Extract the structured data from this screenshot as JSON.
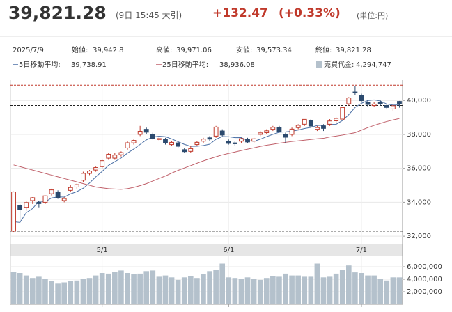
{
  "quote": {
    "price": "39,821.28",
    "time": "(9日 15:45 大引)",
    "change": "+132.47",
    "change_pct": "(+0.33%)",
    "unit": "(単位:円)"
  },
  "info": {
    "date": "2025/7/9",
    "open": {
      "label": "始値:",
      "value": "39,942.8"
    },
    "high": {
      "label": "高値:",
      "value": "39,971.06"
    },
    "low": {
      "label": "安値:",
      "value": "39,573.34"
    },
    "close": {
      "label": "終値:",
      "value": "39,821.28"
    }
  },
  "chart_data": [
    {
      "type": "candlestick",
      "categories": [
        null,
        null,
        null,
        null,
        null,
        null,
        null,
        null,
        null,
        null,
        null,
        null,
        null,
        null,
        "5/1",
        null,
        null,
        null,
        null,
        null,
        null,
        null,
        null,
        null,
        null,
        null,
        null,
        null,
        null,
        null,
        null,
        null,
        null,
        null,
        "6/1",
        null,
        null,
        null,
        null,
        null,
        null,
        null,
        null,
        null,
        null,
        null,
        null,
        null,
        null,
        null,
        null,
        null,
        null,
        null,
        null,
        "7/1",
        null,
        null,
        null,
        null,
        null,
        null
      ],
      "open": [
        32300,
        33800,
        33700,
        34100,
        34000,
        34000,
        34500,
        34600,
        34100,
        34700,
        34900,
        35300,
        35700,
        35900,
        36100,
        36600,
        36600,
        36800,
        37200,
        37500,
        38000,
        38300,
        38000,
        37700,
        37700,
        37400,
        37500,
        37100,
        37000,
        37400,
        37600,
        37800,
        37900,
        38200,
        37600,
        37500,
        37600,
        37700,
        37600,
        38000,
        38100,
        38300,
        38400,
        38000,
        38000,
        38400,
        38600,
        38800,
        38300,
        38500,
        38600,
        38800,
        38900,
        39800,
        40500,
        40300,
        39900,
        39700,
        39900,
        39700,
        39500,
        39942.8
      ],
      "high": [
        34640,
        33900,
        34100,
        34300,
        34100,
        34400,
        34800,
        34700,
        34300,
        35000,
        35100,
        35800,
        35900,
        36100,
        36500,
        36900,
        36900,
        37000,
        37600,
        37700,
        38500,
        38400,
        38100,
        37900,
        37800,
        37600,
        37600,
        37200,
        37300,
        37600,
        37800,
        37900,
        38500,
        38300,
        37700,
        37600,
        37800,
        37800,
        37800,
        38200,
        38300,
        38500,
        38500,
        38100,
        38400,
        38600,
        38900,
        38900,
        38500,
        38600,
        38900,
        39000,
        39600,
        40200,
        40850,
        40400,
        40000,
        39900,
        40000,
        39800,
        39800,
        39971.06
      ],
      "low": [
        32250,
        32900,
        33500,
        33900,
        33700,
        33900,
        34400,
        34200,
        34000,
        34600,
        34800,
        35200,
        35600,
        35800,
        36000,
        36500,
        36500,
        36700,
        37100,
        37400,
        37900,
        38000,
        37700,
        37600,
        37400,
        37300,
        37200,
        36900,
        36900,
        37300,
        37500,
        37600,
        37800,
        37900,
        37400,
        37300,
        37500,
        37500,
        37500,
        37900,
        38000,
        38200,
        38100,
        37500,
        37900,
        38300,
        38500,
        38400,
        38200,
        38200,
        38500,
        38700,
        38900,
        39700,
        40300,
        39900,
        39600,
        39600,
        39700,
        39500,
        39400,
        39573.34
      ],
      "close": [
        34609,
        33585,
        33982,
        34267,
        33920,
        34377,
        34730,
        34279,
        34220,
        34868,
        35039,
        35705,
        35839,
        36045,
        36452,
        36830,
        36779,
        36928,
        37503,
        37644,
        38183,
        38128,
        37755,
        37753,
        37498,
        37529,
        37298,
        36985,
        37160,
        37531,
        37724,
        37722,
        38432,
        37965,
        37470,
        37446,
        37747,
        37554,
        37741,
        38088,
        38211,
        38421,
        38173,
        37834,
        38311,
        38536,
        38885,
        38488,
        38403,
        38354,
        38790,
        38942,
        39584,
        40150,
        40487,
        39986,
        39762,
        39785,
        39811,
        39587,
        39688,
        39821.28
      ],
      "up_color": "#c0392b",
      "down_color": "#2c4a6e",
      "series": [
        {
          "name": "5日移動平均:",
          "label": "39,738.91",
          "color": "#4a6fa5",
          "values": [
            32850,
            32811,
            33380,
            33631,
            34073,
            34026,
            34255,
            34315,
            34305,
            34495,
            34627,
            34822,
            35134,
            35499,
            35816,
            36174,
            36389,
            36607,
            36898,
            37137,
            37407,
            37677,
            37843,
            37893,
            37863,
            37733,
            37567,
            37413,
            37294,
            37301,
            37340,
            37424,
            37714,
            37875,
            37863,
            37807,
            37812,
            37636,
            37592,
            37715,
            37868,
            38003,
            38127,
            38145,
            38190,
            38255,
            38348,
            38411,
            38525,
            38533,
            38584,
            38595,
            38815,
            39164,
            39591,
            39830,
            39994,
            40034,
            39966,
            39786,
            39727,
            39738.91
          ]
        },
        {
          "name": "25日移動平均:",
          "label": "38,936.08",
          "color": "#c0606a",
          "values": [
            36200,
            36100,
            36000,
            35900,
            35800,
            35700,
            35600,
            35500,
            35400,
            35300,
            35200,
            35100,
            35000,
            34900,
            34850,
            34800,
            34780,
            34760,
            34800,
            34880,
            34980,
            35100,
            35250,
            35400,
            35550,
            35720,
            35880,
            36020,
            36160,
            36300,
            36440,
            36560,
            36680,
            36790,
            36880,
            36960,
            37050,
            37130,
            37210,
            37290,
            37360,
            37420,
            37480,
            37530,
            37580,
            37620,
            37660,
            37700,
            37740,
            37770,
            37850,
            37900,
            37960,
            38030,
            38100,
            38250,
            38400,
            38530,
            38650,
            38760,
            38850,
            38936.08
          ]
        }
      ],
      "reference_lines": [
        {
          "value": 40900,
          "color": "#c0392b"
        },
        {
          "value": 39700,
          "color": "#222222"
        },
        {
          "value": 32300,
          "color": "#222222"
        }
      ],
      "ylim": [
        31800,
        41200
      ],
      "yticks": [
        {
          "value": 32000,
          "label": "32,000"
        },
        {
          "value": 34000,
          "label": "34,000"
        },
        {
          "value": 36000,
          "label": "36,000"
        },
        {
          "value": 38000,
          "label": "38,000"
        },
        {
          "value": 40000,
          "label": "40,000"
        }
      ],
      "grid": true
    },
    {
      "type": "bar",
      "name": "売買代金:",
      "label": "4,294,747",
      "color": "#b4c1cc",
      "values": [
        5200000,
        5000000,
        4600000,
        4200000,
        4400000,
        4000000,
        3700000,
        3300000,
        3500000,
        3700000,
        3800000,
        4000000,
        4200000,
        4600000,
        5000000,
        4900000,
        5200000,
        5400000,
        5000000,
        4800000,
        4900000,
        5300000,
        5400000,
        4400000,
        4600000,
        4300000,
        3900000,
        4300000,
        4500000,
        4200000,
        4800000,
        5300000,
        5500000,
        6500000,
        4300000,
        4200000,
        4100000,
        4300000,
        4000000,
        3900000,
        4200000,
        4500000,
        4400000,
        4900000,
        4600000,
        4600000,
        4400000,
        4400000,
        6500000,
        4300000,
        4400000,
        4900000,
        5500000,
        6200000,
        5100000,
        5000000,
        4600000,
        4600000,
        4100000,
        3800000,
        4300000,
        4294747
      ],
      "ylim": [
        0,
        7000000
      ],
      "yticks": [
        {
          "value": 2000000,
          "label": "2,000,000"
        },
        {
          "value": 4000000,
          "label": "4,000,000"
        },
        {
          "value": 6000000,
          "label": "6,000,000"
        }
      ],
      "grid": true
    }
  ]
}
